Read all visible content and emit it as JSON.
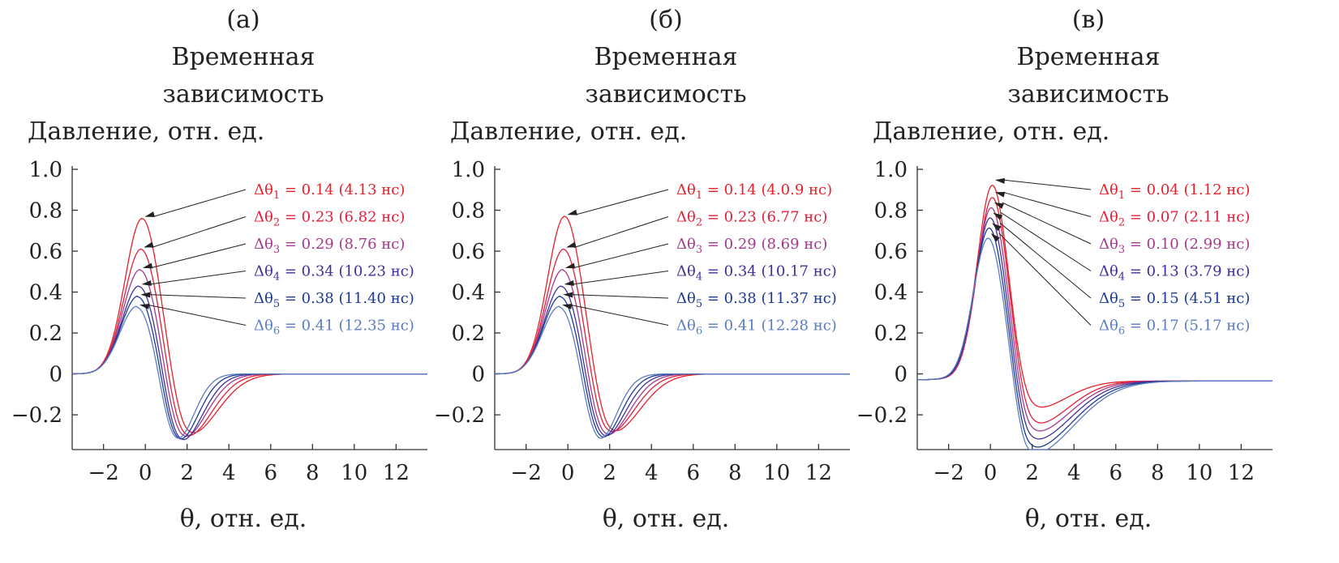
{
  "panels": [
    {
      "letter": "(а)",
      "title_line1": "Временная",
      "title_line2": "зависимость",
      "ylabel": "Давление, отн. ед.",
      "xlabel": "θ, отн. ед.",
      "curve_type": "bipolar",
      "annotations": [
        {
          "prefix": "Δθ",
          "sub": "1",
          "text": " = 0.14 (4.13 нс)",
          "color": "#e8202a"
        },
        {
          "prefix": "Δθ",
          "sub": "2",
          "text": " = 0.23 (6.82 нс)",
          "color": "#e0203a"
        },
        {
          "prefix": "Δθ",
          "sub": "3",
          "text": " = 0.29 (8.76 нс)",
          "color": "#a43a8c"
        },
        {
          "prefix": "Δθ",
          "sub": "4",
          "text": " = 0.34 (10.23 нс)",
          "color": "#40309a"
        },
        {
          "prefix": "Δθ",
          "sub": "5",
          "text": " = 0.38 (11.40 нс)",
          "color": "#1c3a96"
        },
        {
          "prefix": "Δθ",
          "sub": "6",
          "text": " = 0.41 (12.35 нс)",
          "color": "#5a7cc0"
        }
      ]
    },
    {
      "letter": "(б)",
      "title_line1": "Временная",
      "title_line2": "зависимость",
      "ylabel": "Давление, отн. ед.",
      "xlabel": "θ, отн. ед.",
      "curve_type": "bipolar",
      "annotations": [
        {
          "prefix": "Δθ",
          "sub": "1",
          "text": " = 0.14 (4.0.9 нс)",
          "color": "#e8202a"
        },
        {
          "prefix": "Δθ",
          "sub": "2",
          "text": " = 0.23 (6.77 нс)",
          "color": "#e0203a"
        },
        {
          "prefix": "Δθ",
          "sub": "3",
          "text": " = 0.29 (8.69 нс)",
          "color": "#a43a8c"
        },
        {
          "prefix": "Δθ",
          "sub": "4",
          "text": " = 0.34 (10.17 нс)",
          "color": "#40309a"
        },
        {
          "prefix": "Δθ",
          "sub": "5",
          "text": " = 0.38 (11.37 нс)",
          "color": "#1c3a96"
        },
        {
          "prefix": "Δθ",
          "sub": "6",
          "text": " = 0.41 (12.28 нс)",
          "color": "#5a7cc0"
        }
      ]
    },
    {
      "letter": "(в)",
      "title_line1": "Временная",
      "title_line2": "зависимость",
      "ylabel": "Давление, отн. ед.",
      "xlabel": "θ, отн. ед.",
      "curve_type": "asymmetric",
      "annotations": [
        {
          "prefix": "Δθ",
          "sub": "1",
          "text": " = 0.04 (1.12 нс)",
          "color": "#e8202a"
        },
        {
          "prefix": "Δθ",
          "sub": "2",
          "text": " = 0.07 (2.11 нс)",
          "color": "#e0203a"
        },
        {
          "prefix": "Δθ",
          "sub": "3",
          "text": " = 0.10 (2.99 нс)",
          "color": "#a43a8c"
        },
        {
          "prefix": "Δθ",
          "sub": "4",
          "text": " = 0.13 (3.79 нс)",
          "color": "#40309a"
        },
        {
          "prefix": "Δθ",
          "sub": "5",
          "text": " = 0.15 (4.51 нс)",
          "color": "#1c3a96"
        },
        {
          "prefix": "Δθ",
          "sub": "6",
          "text": " = 0.17 (5.17 нс)",
          "color": "#5a7cc0"
        }
      ]
    }
  ],
  "chart_data": [
    {
      "type": "line",
      "title": "Временная зависимость",
      "panel": "(а)",
      "xlabel": "θ, отн. ед.",
      "ylabel": "Давление, отн. ед.",
      "xlim": [
        -3.5,
        13.5
      ],
      "ylim": [
        -0.37,
        1.0
      ],
      "xticks": [
        -2,
        0,
        2,
        4,
        6,
        8,
        10,
        12
      ],
      "xtick_labels": [
        "−2",
        "0",
        "2",
        "4",
        "6",
        "8",
        "10",
        "12"
      ],
      "yticks": [
        -0.2,
        0,
        0.2,
        0.4,
        0.6,
        0.8,
        1.0
      ],
      "ytick_labels": [
        "−0.2",
        "0",
        "0.2",
        "0.4",
        "0.6",
        "0.8",
        "1.0"
      ],
      "series": [
        {
          "name": "Δθ1 = 0.14",
          "color": "#e8202a",
          "peak_x": -0.15,
          "peak_y": 0.76,
          "trough_x": 2.0,
          "trough_y": -0.31
        },
        {
          "name": "Δθ2 = 0.23",
          "color": "#e0203a",
          "peak_x": -0.2,
          "peak_y": 0.61,
          "trough_x": 1.8,
          "trough_y": -0.33
        },
        {
          "name": "Δθ3 = 0.29",
          "color": "#a43a8c",
          "peak_x": -0.25,
          "peak_y": 0.51,
          "trough_x": 1.65,
          "trough_y": -0.34
        },
        {
          "name": "Δθ4 = 0.34",
          "color": "#40309a",
          "peak_x": -0.3,
          "peak_y": 0.43,
          "trough_x": 1.55,
          "trough_y": -0.36
        },
        {
          "name": "Δθ5 = 0.38",
          "color": "#1c3a96",
          "peak_x": -0.35,
          "peak_y": 0.38,
          "trough_x": 1.45,
          "trough_y": -0.36
        },
        {
          "name": "Δθ6 = 0.41",
          "color": "#5a7cc0",
          "peak_x": -0.4,
          "peak_y": 0.33,
          "trough_x": 1.35,
          "trough_y": -0.36
        }
      ]
    },
    {
      "type": "line",
      "title": "Временная зависимость",
      "panel": "(б)",
      "xlabel": "θ, отн. ед.",
      "ylabel": "Давление, отн. ед.",
      "xlim": [
        -3.5,
        13.5
      ],
      "ylim": [
        -0.37,
        1.0
      ],
      "xticks": [
        -2,
        0,
        2,
        4,
        6,
        8,
        10,
        12
      ],
      "xtick_labels": [
        "−2",
        "0",
        "2",
        "4",
        "6",
        "8",
        "10",
        "12"
      ],
      "yticks": [
        -0.2,
        0,
        0.2,
        0.4,
        0.6,
        0.8,
        1.0
      ],
      "ytick_labels": [
        "−0.2",
        "0",
        "0.2",
        "0.4",
        "0.6",
        "0.8",
        "1.0"
      ],
      "series": [
        {
          "name": "Δθ1 = 0.14",
          "color": "#e8202a",
          "peak_x": -0.15,
          "peak_y": 0.77,
          "trough_x": 2.0,
          "trough_y": -0.3
        },
        {
          "name": "Δθ2 = 0.23",
          "color": "#e0203a",
          "peak_x": -0.2,
          "peak_y": 0.61,
          "trough_x": 1.8,
          "trough_y": -0.31
        },
        {
          "name": "Δθ3 = 0.29",
          "color": "#a43a8c",
          "peak_x": -0.25,
          "peak_y": 0.51,
          "trough_x": 1.65,
          "trough_y": -0.33
        },
        {
          "name": "Δθ4 = 0.34",
          "color": "#40309a",
          "peak_x": -0.3,
          "peak_y": 0.43,
          "trough_x": 1.55,
          "trough_y": -0.34
        },
        {
          "name": "Δθ5 = 0.38",
          "color": "#1c3a96",
          "peak_x": -0.35,
          "peak_y": 0.38,
          "trough_x": 1.45,
          "trough_y": -0.35
        },
        {
          "name": "Δθ6 = 0.41",
          "color": "#5a7cc0",
          "peak_x": -0.4,
          "peak_y": 0.33,
          "trough_x": 1.35,
          "trough_y": -0.36
        }
      ]
    },
    {
      "type": "line",
      "title": "Временная зависимость",
      "panel": "(в)",
      "xlabel": "θ, отн. ед.",
      "ylabel": "Давление, отн. ед.",
      "xlim": [
        -3.5,
        13.5
      ],
      "ylim": [
        -0.37,
        1.0
      ],
      "xticks": [
        -2,
        0,
        2,
        4,
        6,
        8,
        10,
        12
      ],
      "xtick_labels": [
        "−2",
        "0",
        "2",
        "4",
        "6",
        "8",
        "10",
        "12"
      ],
      "yticks": [
        -0.2,
        0,
        0.2,
        0.4,
        0.6,
        0.8,
        1.0
      ],
      "ytick_labels": [
        "−0.2",
        "0",
        "0.2",
        "0.4",
        "0.6",
        "0.8",
        "1.0"
      ],
      "series": [
        {
          "name": "Δθ1 = 0.04",
          "color": "#e8202a",
          "peak_x": 0.1,
          "peak_y": 0.94,
          "trough_x": 2.0,
          "trough_y": -0.14
        },
        {
          "name": "Δθ2 = 0.07",
          "color": "#e0203a",
          "peak_x": 0.1,
          "peak_y": 0.88,
          "trough_x": 2.0,
          "trough_y": -0.22
        },
        {
          "name": "Δθ3 = 0.10",
          "color": "#a43a8c",
          "peak_x": 0.05,
          "peak_y": 0.83,
          "trough_x": 1.95,
          "trough_y": -0.26
        },
        {
          "name": "Δθ4 = 0.13",
          "color": "#40309a",
          "peak_x": 0.0,
          "peak_y": 0.78,
          "trough_x": 1.9,
          "trough_y": -0.3
        },
        {
          "name": "Δθ5 = 0.15",
          "color": "#1c3a96",
          "peak_x": -0.05,
          "peak_y": 0.73,
          "trough_x": 1.85,
          "trough_y": -0.34
        },
        {
          "name": "Δθ6 = 0.17",
          "color": "#5a7cc0",
          "peak_x": -0.1,
          "peak_y": 0.68,
          "trough_x": 1.8,
          "trough_y": -0.37
        }
      ]
    }
  ]
}
